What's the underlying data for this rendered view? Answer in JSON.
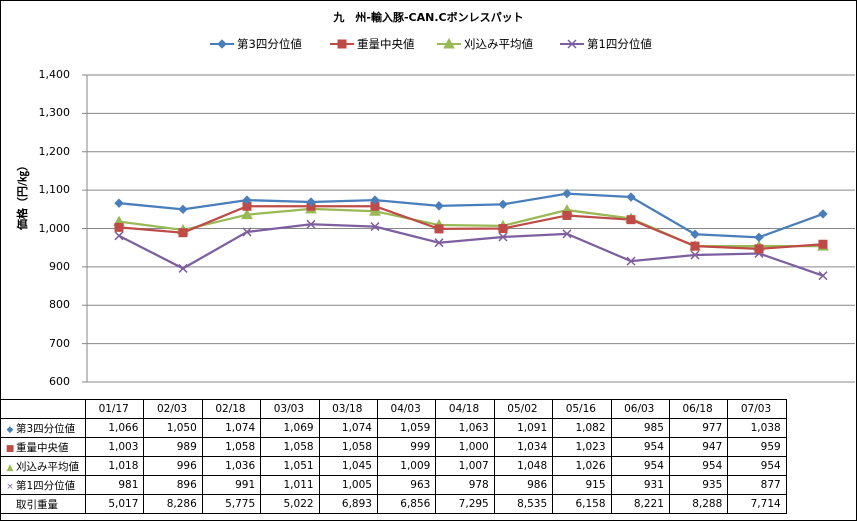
{
  "title": "九　州-輸入豚-CAN.Cボンレスパット",
  "ylabel": "価格（円/㎏）",
  "colors": {
    "q3": "#4a7ebb",
    "median": "#be4b48",
    "trimmed": "#98b954",
    "q1": "#7d5fa0",
    "grid": "#878787"
  },
  "chart_data": {
    "type": "line",
    "title": "九　州-輸入豚-CAN.Cボンレスパット",
    "ylabel": "価格（円/㎏）",
    "ylim": [
      600,
      1400
    ],
    "yticks": [
      "600",
      "700",
      "800",
      "900",
      "1,000",
      "1,100",
      "1,200",
      "1,300",
      "1,400"
    ],
    "grid": true,
    "legend": "top",
    "categories": [
      "01/17",
      "02/03",
      "02/18",
      "03/03",
      "03/18",
      "04/03",
      "04/18",
      "05/02",
      "05/16",
      "06/03",
      "06/18",
      "07/03"
    ],
    "series": [
      {
        "name": "第3四分位値",
        "key": "q3",
        "marker": "diamond",
        "values": [
          1066,
          1050,
          1074,
          1069,
          1074,
          1059,
          1063,
          1091,
          1082,
          985,
          977,
          1038
        ]
      },
      {
        "name": "重量中央値",
        "key": "median",
        "marker": "square",
        "values": [
          1003,
          989,
          1058,
          1058,
          1058,
          999,
          1000,
          1034,
          1023,
          954,
          947,
          959
        ]
      },
      {
        "name": "刈込み平均値",
        "key": "trimmed",
        "marker": "triangle",
        "values": [
          1018,
          996,
          1036,
          1051,
          1045,
          1009,
          1007,
          1048,
          1026,
          954,
          954,
          954
        ]
      },
      {
        "name": "第1四分位値",
        "key": "q1",
        "marker": "x",
        "values": [
          981,
          896,
          991,
          1011,
          1005,
          963,
          978,
          986,
          915,
          931,
          935,
          877
        ]
      }
    ],
    "table": {
      "rows": [
        {
          "label": "第3四分位値",
          "marker": "diamond",
          "key": "q3",
          "cells": [
            "1,066",
            "1,050",
            "1,074",
            "1,069",
            "1,074",
            "1,059",
            "1,063",
            "1,091",
            "1,082",
            "985",
            "977",
            "1,038"
          ]
        },
        {
          "label": "重量中央値",
          "marker": "square",
          "key": "median",
          "cells": [
            "1,003",
            "989",
            "1,058",
            "1,058",
            "1,058",
            "999",
            "1,000",
            "1,034",
            "1,023",
            "954",
            "947",
            "959"
          ]
        },
        {
          "label": "刈込み平均値",
          "marker": "triangle",
          "key": "trimmed",
          "cells": [
            "1,018",
            "996",
            "1,036",
            "1,051",
            "1,045",
            "1,009",
            "1,007",
            "1,048",
            "1,026",
            "954",
            "954",
            "954"
          ]
        },
        {
          "label": "第1四分位値",
          "marker": "x",
          "key": "q1",
          "cells": [
            "981",
            "896",
            "991",
            "1,011",
            "1,005",
            "963",
            "978",
            "986",
            "915",
            "931",
            "935",
            "877"
          ]
        },
        {
          "label": "取引重量",
          "marker": "",
          "key": "",
          "cells": [
            "5,017",
            "8,286",
            "5,775",
            "5,022",
            "6,893",
            "6,856",
            "7,295",
            "8,535",
            "6,158",
            "8,221",
            "8,288",
            "7,714"
          ]
        }
      ]
    }
  }
}
